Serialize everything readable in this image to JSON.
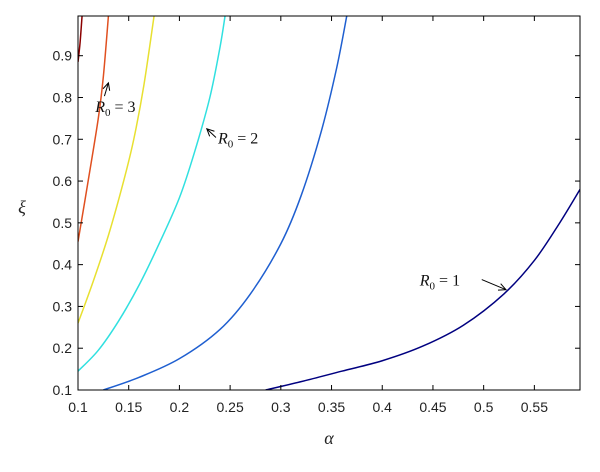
{
  "chart_data": {
    "type": "line",
    "xlabel": "α",
    "ylabel": "ξ",
    "xlim": [
      0.1,
      0.595
    ],
    "ylim": [
      0.1,
      0.995
    ],
    "xticks": [
      0.1,
      0.15,
      0.2,
      0.25,
      0.3,
      0.35,
      0.4,
      0.45,
      0.5,
      0.55
    ],
    "xtick_labels": [
      "0.1",
      "0.15",
      "0.2",
      "0.25",
      "0.3",
      "0.35",
      "0.4",
      "0.45",
      "0.5",
      "0.55"
    ],
    "yticks": [
      0.1,
      0.2,
      0.3,
      0.4,
      0.5,
      0.6,
      0.7,
      0.8,
      0.9
    ],
    "ytick_labels": [
      "0.1",
      "0.2",
      "0.3",
      "0.4",
      "0.5",
      "0.6",
      "0.7",
      "0.8",
      "0.9"
    ],
    "grid": false,
    "legend": "none",
    "series": [
      {
        "color": "#000080",
        "points": [
          [
            0.285,
            0.1
          ],
          [
            0.32,
            0.12
          ],
          [
            0.36,
            0.145
          ],
          [
            0.4,
            0.17
          ],
          [
            0.44,
            0.205
          ],
          [
            0.48,
            0.255
          ],
          [
            0.52,
            0.33
          ],
          [
            0.55,
            0.41
          ],
          [
            0.575,
            0.5
          ],
          [
            0.595,
            0.58
          ]
        ]
      },
      {
        "color": "#1f5fd0",
        "points": [
          [
            0.125,
            0.1
          ],
          [
            0.16,
            0.13
          ],
          [
            0.2,
            0.175
          ],
          [
            0.24,
            0.245
          ],
          [
            0.27,
            0.33
          ],
          [
            0.3,
            0.45
          ],
          [
            0.32,
            0.565
          ],
          [
            0.34,
            0.72
          ],
          [
            0.355,
            0.87
          ],
          [
            0.365,
            0.995
          ]
        ]
      },
      {
        "color": "#30e0e0",
        "points": [
          [
            0.1,
            0.145
          ],
          [
            0.12,
            0.195
          ],
          [
            0.14,
            0.265
          ],
          [
            0.16,
            0.35
          ],
          [
            0.18,
            0.45
          ],
          [
            0.2,
            0.56
          ],
          [
            0.215,
            0.67
          ],
          [
            0.23,
            0.8
          ],
          [
            0.24,
            0.92
          ],
          [
            0.245,
            0.995
          ]
        ]
      },
      {
        "color": "#e8e030",
        "points": [
          [
            0.1,
            0.26
          ],
          [
            0.115,
            0.36
          ],
          [
            0.13,
            0.47
          ],
          [
            0.145,
            0.6
          ],
          [
            0.155,
            0.7
          ],
          [
            0.165,
            0.83
          ],
          [
            0.175,
            0.995
          ]
        ]
      },
      {
        "color": "#e05020",
        "points": [
          [
            0.1,
            0.455
          ],
          [
            0.11,
            0.6
          ],
          [
            0.12,
            0.75
          ],
          [
            0.125,
            0.85
          ],
          [
            0.13,
            0.995
          ]
        ]
      },
      {
        "color": "#8b0000",
        "points": [
          [
            0.1,
            0.885
          ],
          [
            0.102,
            0.93
          ],
          [
            0.104,
            0.995
          ]
        ]
      }
    ],
    "annotations": [
      {
        "symbol": "R",
        "subscript": "0",
        "rest": " = 1",
        "label_at": [
          0.437,
          0.35
        ],
        "arrow_tip": [
          0.522,
          0.34
        ]
      },
      {
        "symbol": "R",
        "subscript": "0",
        "rest": " = 2",
        "label_at": [
          0.238,
          0.69
        ],
        "arrow_tip": [
          0.227,
          0.725
        ]
      },
      {
        "symbol": "R",
        "subscript": "0",
        "rest": " = 3",
        "label_at": [
          0.117,
          0.765
        ],
        "arrow_tip": [
          0.13,
          0.835
        ]
      }
    ]
  }
}
